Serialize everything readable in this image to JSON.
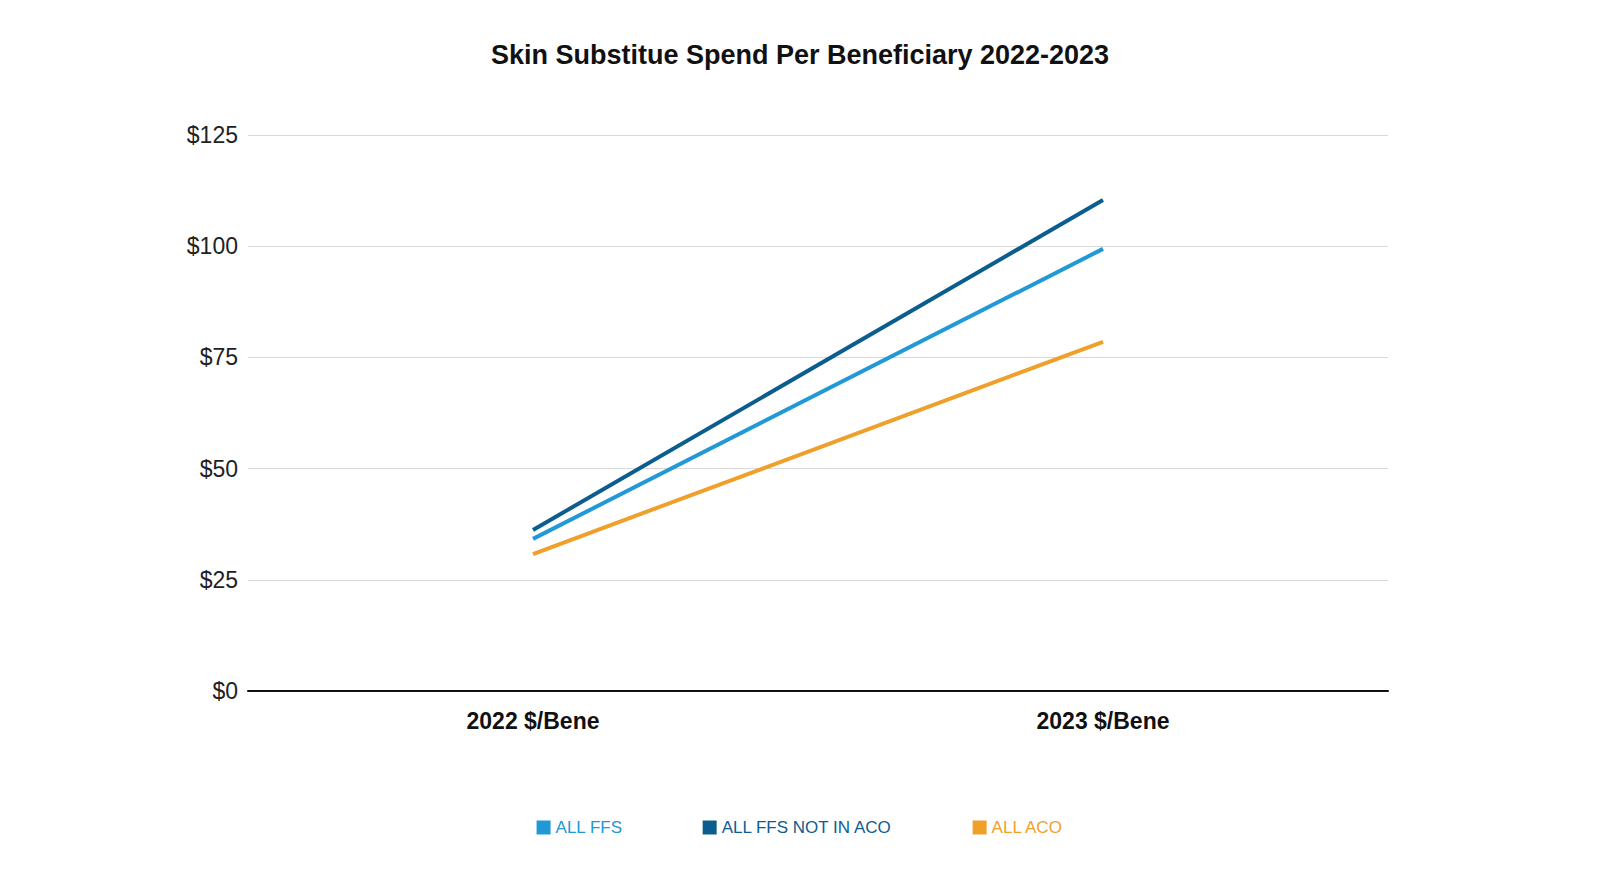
{
  "chart_data": {
    "type": "line",
    "title": "Skin Substitue Spend Per Beneficiary 2022-2023",
    "categories": [
      "2022 $/Bene",
      "2023 $/Bene"
    ],
    "series": [
      {
        "name": "ALL FFS",
        "color": "#2199d6",
        "values": [
          34.2,
          99.4
        ]
      },
      {
        "name": "ALL FFS NOT IN ACO",
        "color": "#0c5d8f",
        "values": [
          36.2,
          110.4
        ]
      },
      {
        "name": "ALL ACO",
        "color": "#efa02a",
        "values": [
          30.8,
          78.5
        ]
      }
    ],
    "ylim": [
      0,
      125
    ],
    "yticks": [
      {
        "value": 0,
        "label": "$0"
      },
      {
        "value": 25,
        "label": "$25"
      },
      {
        "value": 50,
        "label": "$50"
      },
      {
        "value": 75,
        "label": "$75"
      },
      {
        "value": 100,
        "label": "$100"
      },
      {
        "value": 125,
        "label": "$125"
      }
    ],
    "grid": true,
    "legend": "bottom"
  }
}
